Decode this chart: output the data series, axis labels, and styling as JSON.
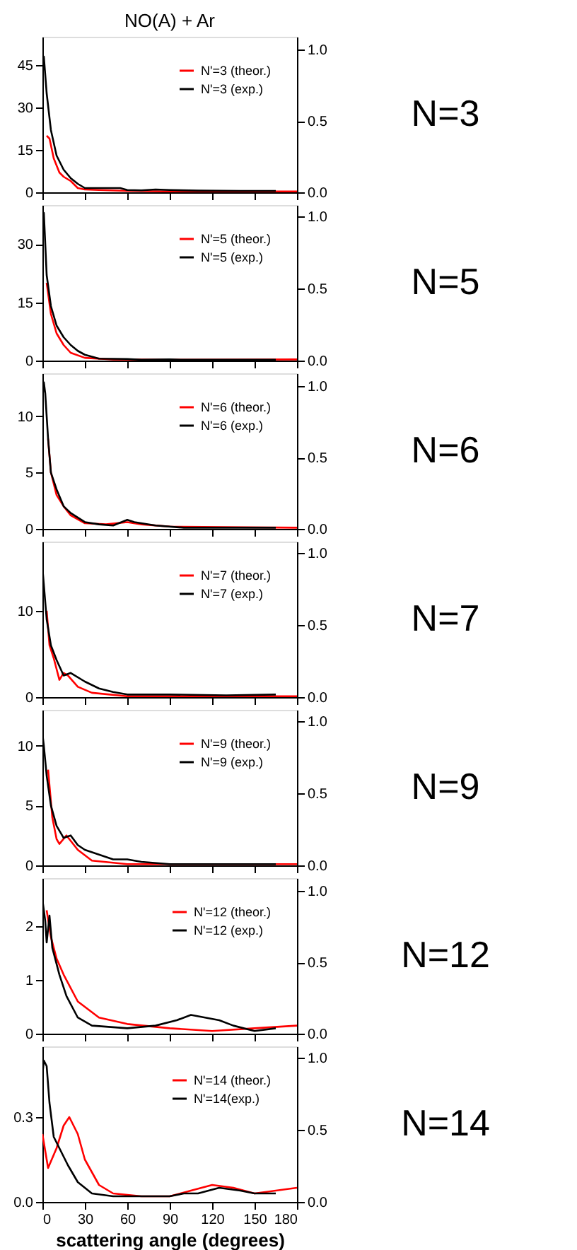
{
  "chart_data": [
    {
      "type": "line",
      "title": "NO(A) + Ar",
      "xlim": [
        0,
        180
      ],
      "xticks": [
        0,
        30,
        60,
        90,
        120,
        150,
        180
      ],
      "ylim": [
        0,
        55
      ],
      "yticks": [
        0,
        15,
        30,
        45
      ],
      "y2lim": [
        0,
        1.09
      ],
      "y2ticks": [
        {
          "value": 0,
          "label": "0.0"
        },
        {
          "value": 0.5,
          "label": "0.5"
        },
        {
          "value": 1,
          "label": "1.0"
        }
      ],
      "tick_labels": "y",
      "legend": "top right",
      "grid": false,
      "annotations": [
        "N=3"
      ],
      "series": [
        {
          "name": "N'=3 (theor.)",
          "color": "#ff0000",
          "x": [
            3,
            5,
            8,
            12,
            15,
            20,
            25,
            30,
            40,
            60,
            90,
            120,
            180
          ],
          "values": [
            20,
            19,
            12,
            7,
            5.5,
            4,
            1.5,
            1,
            0.8,
            0.5,
            0.3,
            0.3,
            0.3
          ]
        },
        {
          "name": "N'=3 (exp.)",
          "color": "#000000",
          "x": [
            0,
            1,
            3,
            6,
            10,
            15,
            20,
            25,
            30,
            40,
            55,
            60,
            70,
            80,
            90,
            110,
            140,
            165
          ],
          "values": [
            40,
            48,
            35,
            22,
            13,
            8,
            5,
            3,
            1.5,
            1.5,
            1.5,
            0.8,
            0.7,
            1,
            0.8,
            0.6,
            0.5,
            0.5
          ]
        }
      ]
    },
    {
      "type": "line",
      "xlim": [
        0,
        180
      ],
      "xticks": [
        0,
        30,
        60,
        90,
        120,
        150,
        180
      ],
      "ylim": [
        0,
        40
      ],
      "yticks": [
        0,
        15,
        30
      ],
      "y2lim": [
        0,
        1.08
      ],
      "y2ticks": [
        {
          "value": 0,
          "label": "0.0"
        },
        {
          "value": 0.5,
          "label": "0.5"
        },
        {
          "value": 1,
          "label": "1.0"
        }
      ],
      "tick_labels": "y",
      "legend": "top right",
      "grid": false,
      "annotations": [
        "N=5"
      ],
      "series": [
        {
          "name": "N'=5 (theor.)",
          "color": "#ff0000",
          "x": [
            3,
            6,
            10,
            15,
            20,
            30,
            50,
            90,
            180
          ],
          "values": [
            20,
            12,
            7,
            4,
            2,
            0.7,
            0.3,
            0.2,
            0.3
          ]
        },
        {
          "name": "N'=5 (exp.)",
          "color": "#000000",
          "x": [
            0,
            1,
            3,
            6,
            10,
            15,
            20,
            25,
            30,
            40,
            60,
            70,
            90,
            100,
            130,
            165
          ],
          "values": [
            36,
            38,
            22,
            14,
            9,
            6,
            4,
            2.5,
            1.5,
            0.5,
            0.4,
            0.2,
            0.3,
            0.2,
            0.2,
            0.2
          ]
        }
      ]
    },
    {
      "type": "line",
      "xlim": [
        0,
        180
      ],
      "xticks": [
        0,
        30,
        60,
        90,
        120,
        150,
        180
      ],
      "ylim": [
        0,
        13.8
      ],
      "yticks": [
        0,
        5,
        10
      ],
      "y2lim": [
        0,
        1.09
      ],
      "y2ticks": [
        {
          "value": 0,
          "label": "0.0"
        },
        {
          "value": 0.5,
          "label": "0.5"
        },
        {
          "value": 1,
          "label": "1.0"
        }
      ],
      "tick_labels": "y",
      "legend": "top right",
      "grid": false,
      "annotations": [
        "N=6"
      ],
      "series": [
        {
          "name": "N'=6 (theor.)",
          "color": "#ff0000",
          "x": [
            4,
            6,
            10,
            15,
            20,
            30,
            45,
            60,
            70,
            90,
            180
          ],
          "values": [
            8,
            5,
            3,
            2,
            1.2,
            0.5,
            0.4,
            0.6,
            0.4,
            0.2,
            0.1
          ]
        },
        {
          "name": "N'=6 (exp.)",
          "color": "#000000",
          "x": [
            0,
            1,
            2,
            4,
            6,
            10,
            15,
            20,
            30,
            40,
            50,
            60,
            65,
            80,
            100,
            130,
            165
          ],
          "values": [
            11.5,
            13,
            12,
            8,
            5,
            3.5,
            2,
            1.4,
            0.6,
            0.4,
            0.3,
            0.8,
            0.6,
            0.3,
            0.1,
            0.1,
            0.1
          ]
        }
      ]
    },
    {
      "type": "line",
      "xlim": [
        0,
        180
      ],
      "xticks": [
        0,
        30,
        60,
        90,
        120,
        150,
        180
      ],
      "ylim": [
        0,
        18
      ],
      "yticks": [
        0,
        10
      ],
      "y2lim": [
        0,
        1.08
      ],
      "y2ticks": [
        {
          "value": 0,
          "label": "0.0"
        },
        {
          "value": 0.5,
          "label": "0.5"
        },
        {
          "value": 1,
          "label": "1.0"
        }
      ],
      "tick_labels": "y",
      "legend": "top right",
      "grid": false,
      "annotations": [
        "N=7"
      ],
      "series": [
        {
          "name": "N'=7 (theor.)",
          "color": "#ff0000",
          "x": [
            3,
            5,
            8,
            12,
            15,
            18,
            25,
            35,
            60,
            180
          ],
          "values": [
            10,
            6,
            4.5,
            2,
            2.8,
            2.5,
            1.2,
            0.5,
            0.1,
            0.1
          ]
        },
        {
          "name": "N'=7 (exp.)",
          "color": "#000000",
          "x": [
            0,
            3,
            6,
            10,
            15,
            20,
            30,
            40,
            50,
            60,
            90,
            130,
            165
          ],
          "values": [
            15,
            9,
            6,
            4.3,
            2.5,
            2.8,
            1.8,
            1,
            0.6,
            0.3,
            0.3,
            0.2,
            0.3
          ]
        }
      ]
    },
    {
      "type": "line",
      "xlim": [
        0,
        180
      ],
      "xticks": [
        0,
        30,
        60,
        90,
        120,
        150,
        180
      ],
      "ylim": [
        0,
        13
      ],
      "yticks": [
        0,
        5,
        10
      ],
      "y2lim": [
        0,
        1.08
      ],
      "y2ticks": [
        {
          "value": 0,
          "label": "0.0"
        },
        {
          "value": 0.5,
          "label": "0.5"
        },
        {
          "value": 1,
          "label": "1.0"
        }
      ],
      "tick_labels": "y",
      "legend": "top right",
      "grid": false,
      "annotations": [
        "N=9"
      ],
      "series": [
        {
          "name": "N'=9 (theor.)",
          "color": "#ff0000",
          "x": [
            4,
            7,
            10,
            12,
            17,
            25,
            35,
            60,
            180
          ],
          "values": [
            8,
            4,
            2.2,
            1.8,
            2.5,
            1.3,
            0.4,
            0.1,
            0.1
          ]
        },
        {
          "name": "N'=9 (exp.)",
          "color": "#000000",
          "x": [
            0,
            1,
            3,
            6,
            10,
            15,
            20,
            25,
            30,
            40,
            50,
            60,
            70,
            90,
            130,
            165
          ],
          "values": [
            11,
            10,
            7.5,
            5,
            3.3,
            2.3,
            2.5,
            1.7,
            1.3,
            0.9,
            0.5,
            0.5,
            0.3,
            0.1,
            0.1,
            0.1
          ]
        }
      ]
    },
    {
      "type": "line",
      "xlim": [
        0,
        180
      ],
      "xticks": [
        0,
        30,
        60,
        90,
        120,
        150,
        180
      ],
      "ylim": [
        0,
        2.9
      ],
      "yticks": [
        0,
        1,
        2
      ],
      "y2lim": [
        0,
        1.09
      ],
      "y2ticks": [
        {
          "value": 0,
          "label": "0.0"
        },
        {
          "value": 0.5,
          "label": "0.5"
        },
        {
          "value": 1,
          "label": "1.0"
        }
      ],
      "tick_labels": "y",
      "legend": "top right",
      "grid": false,
      "annotations": [
        "N=12"
      ],
      "series": [
        {
          "name": "N'=12 (theor.)",
          "color": "#ff0000",
          "x": [
            3,
            6,
            10,
            15,
            25,
            40,
            60,
            90,
            120,
            150,
            180
          ],
          "values": [
            2.3,
            1.8,
            1.4,
            1.1,
            0.6,
            0.3,
            0.18,
            0.1,
            0.05,
            0.1,
            0.15
          ]
        },
        {
          "name": "N'=12 (exp.)",
          "color": "#000000",
          "x": [
            0,
            2,
            3,
            5,
            7,
            12,
            17,
            25,
            35,
            60,
            80,
            95,
            105,
            115,
            125,
            135,
            150,
            165
          ],
          "values": [
            2.5,
            2.1,
            1.7,
            2.2,
            1.6,
            1.1,
            0.7,
            0.3,
            0.15,
            0.1,
            0.15,
            0.25,
            0.35,
            0.3,
            0.25,
            0.15,
            0.05,
            0.1
          ]
        }
      ]
    },
    {
      "type": "line",
      "xlabel": "scattering angle (degrees)",
      "xlim": [
        0,
        180
      ],
      "xticks": [
        0,
        30,
        60,
        90,
        120,
        150,
        180
      ],
      "ylim": [
        0,
        0.55
      ],
      "yticks": [
        {
          "value": 0,
          "label": "0.0"
        },
        0.3
      ],
      "y2lim": [
        0,
        1.08
      ],
      "y2ticks": [
        {
          "value": 0,
          "label": "0.0"
        },
        {
          "value": 0.5,
          "label": "0.5"
        },
        {
          "value": 1,
          "label": "1.0"
        }
      ],
      "legend": "top right",
      "grid": false,
      "annotations": [
        "N=14"
      ],
      "series": [
        {
          "name": "N'=14 (theor.)",
          "color": "#ff0000",
          "x": [
            0,
            4,
            10,
            15,
            19,
            25,
            30,
            40,
            50,
            70,
            90,
            105,
            120,
            135,
            150,
            180
          ],
          "values": [
            0.24,
            0.12,
            0.19,
            0.27,
            0.3,
            0.24,
            0.15,
            0.06,
            0.03,
            0.02,
            0.02,
            0.04,
            0.06,
            0.05,
            0.03,
            0.05
          ]
        },
        {
          "name": "N'=14(exp.)",
          "color": "#000000",
          "x": [
            0,
            1,
            3,
            5,
            8,
            12,
            18,
            25,
            35,
            50,
            75,
            90,
            100,
            110,
            125,
            140,
            150,
            165
          ],
          "values": [
            0.45,
            0.5,
            0.48,
            0.35,
            0.23,
            0.19,
            0.13,
            0.07,
            0.03,
            0.02,
            0.02,
            0.02,
            0.03,
            0.03,
            0.05,
            0.04,
            0.03,
            0.03
          ]
        }
      ]
    }
  ]
}
